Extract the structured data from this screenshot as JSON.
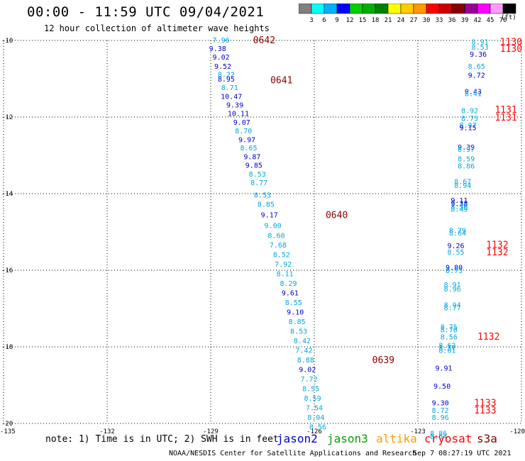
{
  "header": {
    "title": "00:00 - 11:59 UTC 09/04/2021",
    "subtitle": "12 hour collection of altimeter wave heights"
  },
  "colorbar": {
    "labels": [
      "3",
      "6",
      "9",
      "12",
      "15",
      "18",
      "21",
      "24",
      "27",
      "30",
      "33",
      "36",
      "39",
      "42",
      "45",
      "70"
    ],
    "colors": [
      "#808080",
      "#00ffff",
      "#00b0ff",
      "#0000ff",
      "#00d000",
      "#00b000",
      "#008000",
      "#ffff00",
      "#ffcc00",
      "#ff9900",
      "#ff0000",
      "#cc0000",
      "#880000",
      "#990099",
      "#ff00ff",
      "#ff99ff",
      "#000000"
    ],
    "units": "(ft)"
  },
  "chart_data": {
    "type": "scatter",
    "xlim": [
      -135,
      -120
    ],
    "ylim": [
      -20,
      -10
    ],
    "x_ticks": [
      "-135",
      "-132",
      "-129",
      "-126",
      "-123",
      "-120"
    ],
    "x_tick_values": [
      -135,
      -132,
      -129,
      -126,
      -123,
      -120
    ],
    "y_ticks": [
      "-10",
      "-12",
      "-14",
      "-16",
      "-18",
      "-20"
    ],
    "y_tick_values": [
      -10,
      -12,
      -14,
      -16,
      -18,
      -20
    ],
    "grid": true,
    "series_colors": {
      "jason2": "#0000cc",
      "jason3": "#00a000",
      "altika": "#ff9900",
      "cryosat": "#ff0000",
      "s3a": "#880000",
      "track_light": "#00a8e0"
    },
    "points": [
      {
        "x": -128.7,
        "y": -9.98,
        "label": "7.96",
        "c": "track_light"
      },
      {
        "x": -128.8,
        "y": -10.2,
        "label": "9.38",
        "c": "jason2"
      },
      {
        "x": -128.7,
        "y": -10.43,
        "label": "9.02",
        "c": "jason2"
      },
      {
        "x": -128.65,
        "y": -10.67,
        "label": "9.52",
        "c": "jason2"
      },
      {
        "x": -128.55,
        "y": -10.88,
        "label": "8.22",
        "c": "track_light"
      },
      {
        "x": -128.55,
        "y": -11.0,
        "label": "8.95",
        "c": "jason2"
      },
      {
        "x": -128.45,
        "y": -11.22,
        "label": "8.71",
        "c": "track_light"
      },
      {
        "x": -128.4,
        "y": -11.45,
        "label": "10.47",
        "c": "jason2"
      },
      {
        "x": -128.3,
        "y": -11.68,
        "label": "9.39",
        "c": "jason2"
      },
      {
        "x": -128.2,
        "y": -11.9,
        "label": "10.11",
        "c": "jason2"
      },
      {
        "x": -128.1,
        "y": -12.13,
        "label": "9.07",
        "c": "jason2"
      },
      {
        "x": -128.05,
        "y": -12.35,
        "label": "8.70",
        "c": "track_light"
      },
      {
        "x": -127.95,
        "y": -12.58,
        "label": "9.97",
        "c": "jason2"
      },
      {
        "x": -127.9,
        "y": -12.8,
        "label": "8.65",
        "c": "track_light"
      },
      {
        "x": -127.8,
        "y": -13.03,
        "label": "9.87",
        "c": "jason2"
      },
      {
        "x": -127.75,
        "y": -13.25,
        "label": "9.85",
        "c": "jason2"
      },
      {
        "x": -127.65,
        "y": -13.48,
        "label": "8.53",
        "c": "track_light"
      },
      {
        "x": -127.6,
        "y": -13.7,
        "label": "8.77",
        "c": "track_light"
      },
      {
        "x": -127.5,
        "y": -14.03,
        "label": "8.53",
        "c": "track_light"
      },
      {
        "x": -127.4,
        "y": -14.27,
        "label": "8.85",
        "c": "track_light"
      },
      {
        "x": -127.3,
        "y": -14.55,
        "label": "9.17",
        "c": "jason2"
      },
      {
        "x": -127.2,
        "y": -14.82,
        "label": "9.00",
        "c": "track_light"
      },
      {
        "x": -127.1,
        "y": -15.08,
        "label": "8.60",
        "c": "track_light"
      },
      {
        "x": -127.05,
        "y": -15.33,
        "label": "7.68",
        "c": "track_light"
      },
      {
        "x": -126.95,
        "y": -15.58,
        "label": "8.52",
        "c": "track_light"
      },
      {
        "x": -126.9,
        "y": -15.83,
        "label": "7.92",
        "c": "track_light"
      },
      {
        "x": -126.85,
        "y": -16.08,
        "label": "8.11",
        "c": "track_light"
      },
      {
        "x": -126.75,
        "y": -16.33,
        "label": "8.29",
        "c": "track_light"
      },
      {
        "x": -126.7,
        "y": -16.58,
        "label": "9.61",
        "c": "jason2"
      },
      {
        "x": -126.6,
        "y": -16.83,
        "label": "8.55",
        "c": "track_light"
      },
      {
        "x": -126.55,
        "y": -17.08,
        "label": "9.10",
        "c": "jason2"
      },
      {
        "x": -126.5,
        "y": -17.33,
        "label": "8.85",
        "c": "track_light"
      },
      {
        "x": -126.45,
        "y": -17.58,
        "label": "8.53",
        "c": "track_light"
      },
      {
        "x": -126.35,
        "y": -17.83,
        "label": "8.42",
        "c": "track_light"
      },
      {
        "x": -126.3,
        "y": -18.08,
        "label": "7.42",
        "c": "track_light"
      },
      {
        "x": -126.25,
        "y": -18.33,
        "label": "8.88",
        "c": "track_light"
      },
      {
        "x": -126.2,
        "y": -18.58,
        "label": "9.02",
        "c": "jason2"
      },
      {
        "x": -126.15,
        "y": -18.83,
        "label": "7.72",
        "c": "track_light"
      },
      {
        "x": -126.1,
        "y": -19.08,
        "label": "8.55",
        "c": "track_light"
      },
      {
        "x": -126.05,
        "y": -19.33,
        "label": "8.59",
        "c": "track_light"
      },
      {
        "x": -126.0,
        "y": -19.58,
        "label": "7.54",
        "c": "track_light"
      },
      {
        "x": -125.95,
        "y": -19.83,
        "label": "8.04",
        "c": "track_light"
      },
      {
        "x": -125.9,
        "y": -20.08,
        "label": "8.56",
        "c": "track_light"
      },
      {
        "x": -121.2,
        "y": -10.03,
        "label": "8.91",
        "c": "track_light"
      },
      {
        "x": -121.2,
        "y": -10.17,
        "label": "8.53",
        "c": "track_light"
      },
      {
        "x": -121.25,
        "y": -10.35,
        "label": "9.36",
        "c": "jason2"
      },
      {
        "x": -121.3,
        "y": -10.67,
        "label": "8.65",
        "c": "track_light"
      },
      {
        "x": -121.3,
        "y": -10.9,
        "label": "9.72",
        "c": "jason2"
      },
      {
        "x": -121.4,
        "y": -11.32,
        "label": "9.43",
        "c": "jason2"
      },
      {
        "x": -121.4,
        "y": -11.38,
        "label": "8.41",
        "c": "track_light"
      },
      {
        "x": -121.5,
        "y": -11.82,
        "label": "8.92",
        "c": "track_light"
      },
      {
        "x": -121.5,
        "y": -12.03,
        "label": "8.75",
        "c": "track_light"
      },
      {
        "x": -121.55,
        "y": -12.2,
        "label": "8.97",
        "c": "track_light"
      },
      {
        "x": -121.55,
        "y": -12.27,
        "label": "9.15",
        "c": "jason2"
      },
      {
        "x": -121.6,
        "y": -12.78,
        "label": "9.39",
        "c": "jason2"
      },
      {
        "x": -121.6,
        "y": -12.83,
        "label": "8.97",
        "c": "track_light"
      },
      {
        "x": -121.6,
        "y": -13.08,
        "label": "8.59",
        "c": "track_light"
      },
      {
        "x": -121.6,
        "y": -13.27,
        "label": "8.86",
        "c": "track_light"
      },
      {
        "x": -121.7,
        "y": -13.68,
        "label": "8.67",
        "c": "track_light"
      },
      {
        "x": -121.7,
        "y": -13.78,
        "label": "8.94",
        "c": "track_light"
      },
      {
        "x": -121.8,
        "y": -14.17,
        "label": "9.11",
        "c": "jason2"
      },
      {
        "x": -121.8,
        "y": -14.25,
        "label": "9.38",
        "c": "jason2"
      },
      {
        "x": -121.8,
        "y": -14.33,
        "label": "8.56",
        "c": "track_light"
      },
      {
        "x": -121.8,
        "y": -14.4,
        "label": "8.49",
        "c": "track_light"
      },
      {
        "x": -121.85,
        "y": -14.95,
        "label": "8.79",
        "c": "track_light"
      },
      {
        "x": -121.85,
        "y": -15.02,
        "label": "8.64",
        "c": "track_light"
      },
      {
        "x": -121.9,
        "y": -15.35,
        "label": "9.26",
        "c": "jason2"
      },
      {
        "x": -121.9,
        "y": -15.52,
        "label": "8.55",
        "c": "track_light"
      },
      {
        "x": -121.95,
        "y": -15.92,
        "label": "9.80",
        "c": "jason2"
      },
      {
        "x": -121.95,
        "y": -16.0,
        "label": "8.73",
        "c": "track_light"
      },
      {
        "x": -122.0,
        "y": -16.37,
        "label": "8.91",
        "c": "track_light"
      },
      {
        "x": -122.0,
        "y": -16.48,
        "label": "8.96",
        "c": "track_light"
      },
      {
        "x": -122.0,
        "y": -16.9,
        "label": "8.94",
        "c": "track_light"
      },
      {
        "x": -122.0,
        "y": -16.97,
        "label": "8.77",
        "c": "track_light"
      },
      {
        "x": -122.1,
        "y": -17.47,
        "label": "8.75",
        "c": "track_light"
      },
      {
        "x": -122.1,
        "y": -17.55,
        "label": "8.70",
        "c": "track_light"
      },
      {
        "x": -122.1,
        "y": -17.73,
        "label": "8.56",
        "c": "track_light"
      },
      {
        "x": -122.15,
        "y": -17.95,
        "label": "8.62",
        "c": "track_light"
      },
      {
        "x": -122.15,
        "y": -18.02,
        "label": "8.37",
        "c": "track_light"
      },
      {
        "x": -122.15,
        "y": -18.08,
        "label": "8.61",
        "c": "track_light"
      },
      {
        "x": -122.25,
        "y": -18.55,
        "label": "9.91",
        "c": "jason2"
      },
      {
        "x": -122.3,
        "y": -19.02,
        "label": "9.50",
        "c": "jason2"
      },
      {
        "x": -122.35,
        "y": -19.45,
        "label": "9.30",
        "c": "jason2"
      },
      {
        "x": -122.35,
        "y": -19.65,
        "label": "8.72",
        "c": "track_light"
      },
      {
        "x": -122.35,
        "y": -19.83,
        "label": "8.96",
        "c": "track_light"
      },
      {
        "x": -122.4,
        "y": -20.25,
        "label": "8.86",
        "c": "track_light"
      },
      {
        "x": -122.4,
        "y": -20.33,
        "label": "8.64",
        "c": "track_light"
      }
    ],
    "annotations": [
      {
        "x": -127.45,
        "y": -9.98,
        "text": "0642",
        "c": "s3a"
      },
      {
        "x": -126.95,
        "y": -11.03,
        "text": "0641",
        "c": "s3a"
      },
      {
        "x": -125.35,
        "y": -14.55,
        "text": "0640",
        "c": "s3a"
      },
      {
        "x": -124.0,
        "y": -18.33,
        "text": "0639",
        "c": "s3a"
      },
      {
        "x": -120.3,
        "y": -10.03,
        "text": "1130",
        "c": "cryosat"
      },
      {
        "x": -120.3,
        "y": -10.2,
        "text": "1130",
        "c": "cryosat"
      },
      {
        "x": -120.45,
        "y": -11.8,
        "text": "1131",
        "c": "cryosat"
      },
      {
        "x": -120.45,
        "y": -12.0,
        "text": "1131",
        "c": "cryosat"
      },
      {
        "x": -120.7,
        "y": -15.32,
        "text": "1132",
        "c": "cryosat"
      },
      {
        "x": -120.7,
        "y": -15.52,
        "text": "1132",
        "c": "cryosat"
      },
      {
        "x": -120.95,
        "y": -17.72,
        "text": "1132",
        "c": "cryosat"
      },
      {
        "x": -121.05,
        "y": -19.45,
        "text": "1133",
        "c": "cryosat"
      },
      {
        "x": -121.05,
        "y": -19.65,
        "text": "1133",
        "c": "cryosat"
      }
    ]
  },
  "footer": {
    "note": "note: 1) Time is in UTC; 2) SWH is in feet",
    "legend": [
      {
        "label": "jason2",
        "color": "#0000cc"
      },
      {
        "label": "jason3",
        "color": "#00a000"
      },
      {
        "label": "altika",
        "color": "#ff9900"
      },
      {
        "label": "cryosat",
        "color": "#ff0000"
      },
      {
        "label": "s3a",
        "color": "#880000"
      }
    ],
    "credit": "NOAA/NESDIS Center for Satellite Applications and Research",
    "timestamp": "Sep  7 08:27:19 UTC 2021"
  }
}
